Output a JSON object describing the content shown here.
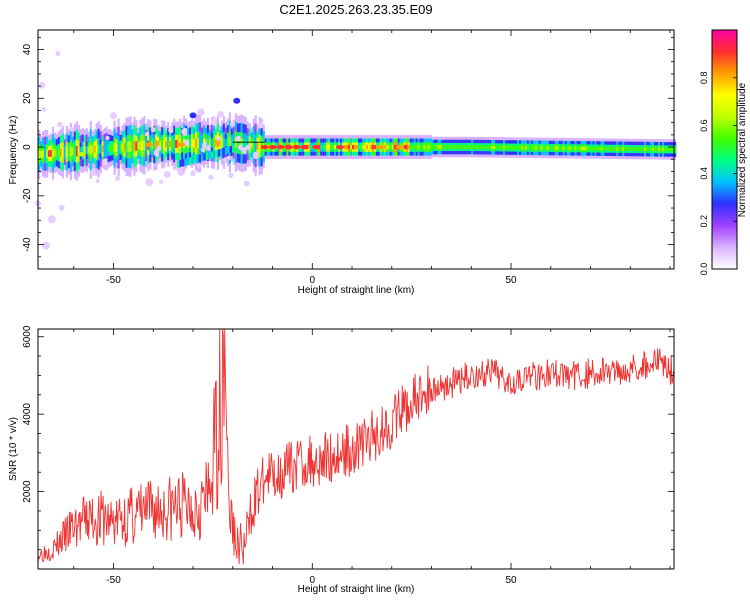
{
  "figure_title": "C2E1.2025.263.23.35.E09",
  "colors": {
    "snr_line": "#ee3333",
    "colormap": [
      "#ffffff",
      "#d9b3ff",
      "#a040ff",
      "#3030ff",
      "#00c0ff",
      "#00ff80",
      "#40ff00",
      "#c0ff00",
      "#ffff00",
      "#ffa000",
      "#ff3030",
      "#ff00a0"
    ]
  },
  "chart_data": [
    {
      "type": "heatmap",
      "xlabel": "Height of straight line (km)",
      "ylabel": "Frequency (Hz)",
      "xlim": [
        -69,
        91
      ],
      "ylim": [
        -50,
        48
      ],
      "xticks": [
        -50,
        0,
        50
      ],
      "yticks": [
        -40,
        -20,
        0,
        20,
        40
      ],
      "colorbar": {
        "label": "Normalized spectral amplitude",
        "range": [
          0,
          1
        ],
        "ticks": [
          "0.0",
          "0.2",
          "0.4",
          "0.6",
          "0.8"
        ]
      },
      "band_center_hz": [
        {
          "x": -69,
          "y": -3
        },
        {
          "x": -55,
          "y": -1
        },
        {
          "x": -40,
          "y": 1
        },
        {
          "x": -20,
          "y": 2
        },
        {
          "x": -12,
          "y": 0
        },
        {
          "x": 0,
          "y": 0
        },
        {
          "x": 40,
          "y": 0
        },
        {
          "x": 91,
          "y": -1
        }
      ],
      "features": [
        {
          "x": -32,
          "y": -7,
          "note": "lower branch"
        },
        {
          "x": -30,
          "y": 13
        },
        {
          "x": -19,
          "y": 19
        }
      ]
    },
    {
      "type": "line",
      "xlabel": "Height of straight line (km)",
      "ylabel": "SNR (10 * v/v)",
      "xlim": [
        -69,
        91
      ],
      "ylim": [
        0,
        6200
      ],
      "xticks": [
        -50,
        0,
        50
      ],
      "yticks": [
        2000,
        4000,
        6000
      ],
      "series": [
        {
          "points": [
            [
              -69,
              300
            ],
            [
              -65,
              450
            ],
            [
              -60,
              900
            ],
            [
              -55,
              1100
            ],
            [
              -50,
              1000
            ],
            [
              -45,
              1150
            ],
            [
              -40,
              1250
            ],
            [
              -35,
              1300
            ],
            [
              -30,
              1400
            ],
            [
              -26,
              1500
            ],
            [
              -24,
              3000
            ],
            [
              -23,
              3600
            ],
            [
              -22,
              5800
            ],
            [
              -21,
              1600
            ],
            [
              -19,
              600
            ],
            [
              -17,
              500
            ],
            [
              -15,
              1700
            ],
            [
              -12,
              2300
            ],
            [
              -8,
              2500
            ],
            [
              -4,
              2700
            ],
            [
              0,
              2800
            ],
            [
              5,
              2900
            ],
            [
              10,
              3100
            ],
            [
              15,
              3400
            ],
            [
              20,
              3800
            ],
            [
              25,
              4300
            ],
            [
              30,
              4650
            ],
            [
              35,
              4800
            ],
            [
              40,
              5000
            ],
            [
              45,
              5050
            ],
            [
              50,
              4900
            ],
            [
              55,
              5000
            ],
            [
              60,
              5050
            ],
            [
              65,
              5000
            ],
            [
              70,
              5050
            ],
            [
              75,
              5100
            ],
            [
              80,
              5200
            ],
            [
              85,
              5300
            ],
            [
              88,
              5400
            ],
            [
              91,
              5050
            ]
          ]
        }
      ]
    }
  ]
}
